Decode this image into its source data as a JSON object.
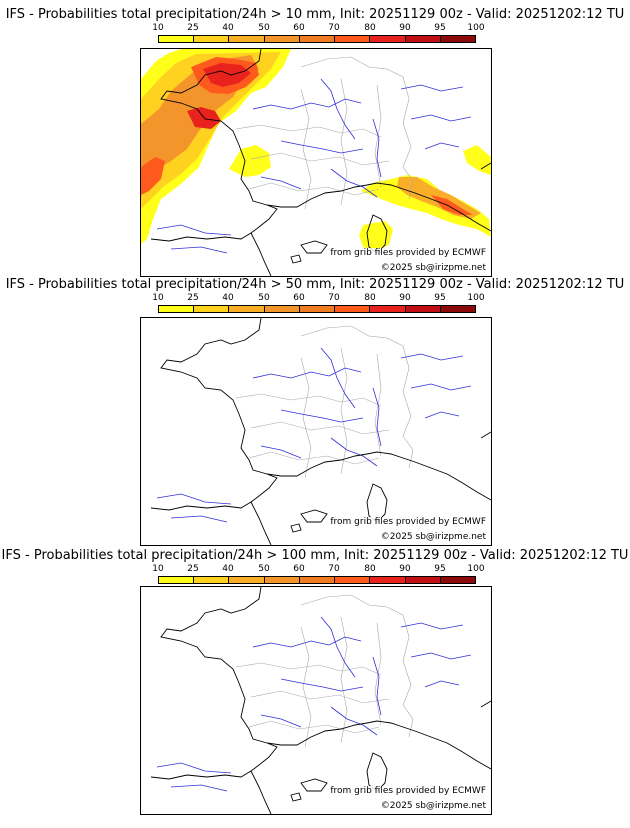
{
  "colors": {
    "bins": [
      "#ffff1a",
      "#ffd21f",
      "#f8ae27",
      "#f4952c",
      "#ef7b22",
      "#ff5a1e",
      "#e8221c",
      "#c20f14",
      "#8c0a0a",
      "#4a0404"
    ],
    "coast": "#000000",
    "rivers": "#2f2fd8",
    "borders": "#a8a8a8"
  },
  "legend": {
    "ticks": [
      "10",
      "25",
      "40",
      "50",
      "60",
      "70",
      "80",
      "90",
      "95",
      "100"
    ]
  },
  "panels": [
    {
      "title": "IFS - Probabilities total precipitation/24h > 10 mm, Init: 20251129 00z - Valid: 20251202:12 TU",
      "source": "from grib files provided by ECMWF",
      "copyright": "©2025 sb@irizpme.net"
    },
    {
      "title": "IFS - Probabilities total precipitation/24h > 50 mm, Init: 20251129 00z - Valid: 20251202:12 TU",
      "source": "from grib files provided by ECMWF",
      "copyright": "©2025 sb@irizpme.net"
    },
    {
      "title": "IFS - Probabilities total precipitation/24h > 100 mm, Init: 20251129 00z - Valid: 20251202:12 TU",
      "source": "from grib files provided by ECMWF",
      "copyright": "©2025 sb@irizpme.net"
    }
  ]
}
